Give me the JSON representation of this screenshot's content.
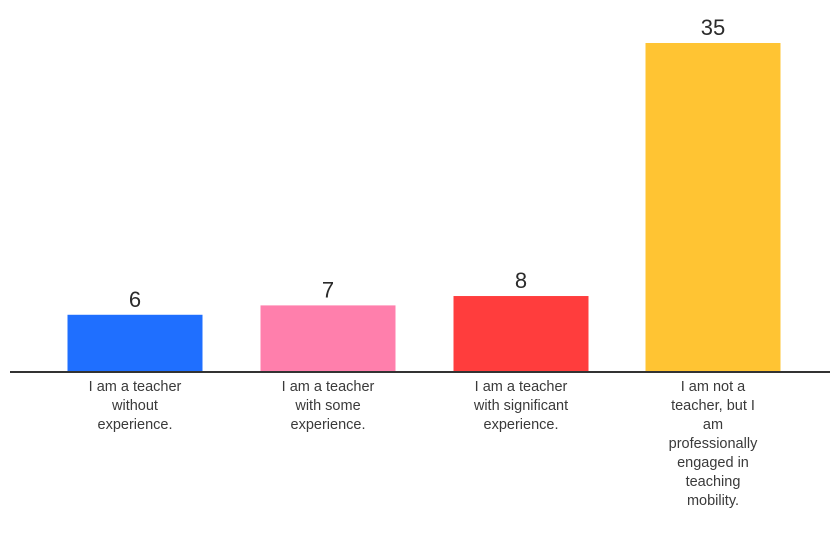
{
  "chart_data": {
    "type": "bar",
    "categories": [
      [
        "I am a teacher",
        "without",
        "experience."
      ],
      [
        "I am a teacher",
        "with some",
        "experience."
      ],
      [
        "I am a teacher",
        "with significant",
        "experience."
      ],
      [
        "I am not a",
        "teacher, but I",
        "am",
        "professionally",
        "engaged in",
        "teaching",
        "mobility."
      ]
    ],
    "values": [
      6,
      7,
      8,
      35
    ],
    "colors": [
      "#1f6fff",
      "#ff7fac",
      "#ff3d3d",
      "#ffc433"
    ],
    "axis_color": "#333333",
    "ylim": [
      0,
      35
    ],
    "grid": false,
    "legend": "none",
    "show_data_labels": true
  }
}
